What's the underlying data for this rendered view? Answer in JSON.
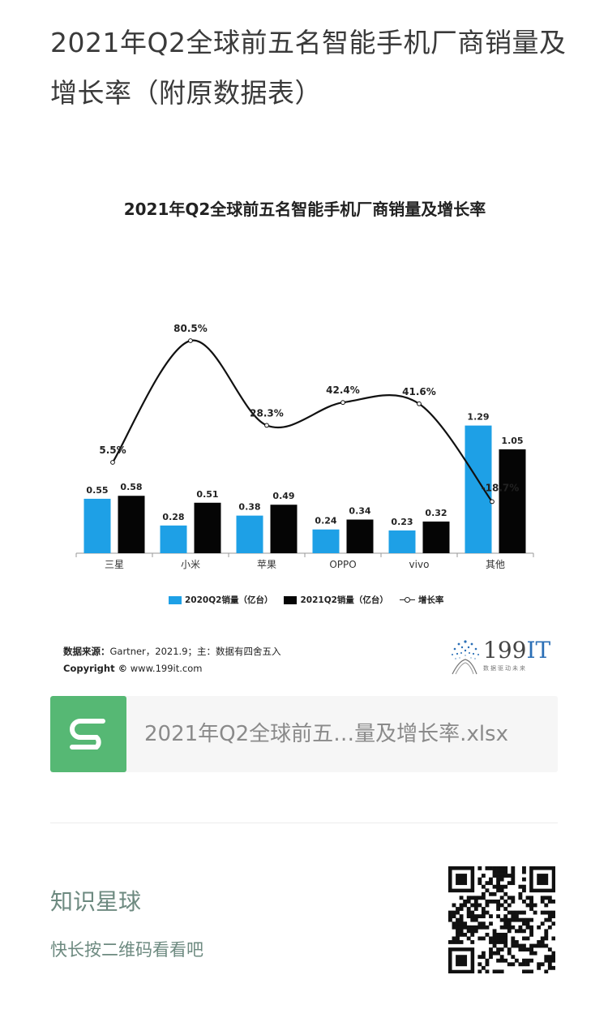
{
  "post": {
    "title": "2021年Q2全球前五名智能手机厂商销量及增长率（附原数据表）"
  },
  "chart": {
    "source_label": "数据来源：",
    "source_text": "Gartner，2021.9；主：数据有四舍五入",
    "copyright_label": "Copyright ©",
    "copyright_url": "www.199it.com",
    "logo_number": "199",
    "logo_it": "IT",
    "logo_slogan": "数据驱动未来",
    "colors": {
      "bar2020": "#1ea0e6",
      "bar2021": "#050505",
      "line": "#111111"
    }
  },
  "chart_data": {
    "type": "bar",
    "title": "2021年Q2全球前五名智能手机厂商销量及增长率",
    "categories": [
      "三星",
      "小米",
      "苹果",
      "OPPO",
      "vivo",
      "其他"
    ],
    "series": [
      {
        "name": "2020Q2销量（亿台）",
        "type": "bar",
        "values": [
          0.55,
          0.28,
          0.38,
          0.24,
          0.23,
          1.29
        ]
      },
      {
        "name": "2021Q2销量（亿台）",
        "type": "bar",
        "values": [
          0.58,
          0.51,
          0.49,
          0.34,
          0.32,
          1.05
        ]
      },
      {
        "name": "增长率",
        "type": "line",
        "values": [
          5.5,
          80.5,
          28.3,
          42.4,
          41.6,
          -18.7
        ],
        "labels": [
          "5.5%",
          "80.5%",
          "28.3%",
          "42.4%",
          "41.6%",
          "-18.7%"
        ]
      }
    ],
    "legend": "bottom",
    "grid": false
  },
  "file": {
    "name": "2021年Q2全球前五…量及增长率.xlsx",
    "icon": "spreadsheet-s-icon"
  },
  "footer": {
    "title": "知识星球",
    "subtitle": "快长按二维码看看吧",
    "qr_icon": "qr-code"
  }
}
